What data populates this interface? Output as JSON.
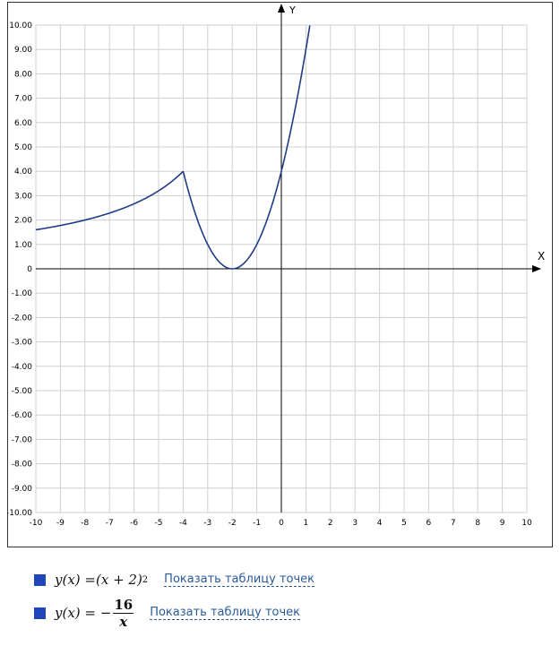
{
  "chart_data": {
    "type": "line",
    "xlabel": "X",
    "ylabel": "Y",
    "xlim": [
      -10,
      10
    ],
    "ylim": [
      -10,
      10
    ],
    "grid": true,
    "x_ticks": [
      "-10",
      "-9",
      "-8",
      "-7",
      "-6",
      "-5",
      "-4",
      "-3",
      "-2",
      "-1",
      "0",
      "1",
      "2",
      "3",
      "4",
      "5",
      "6",
      "7",
      "8",
      "9",
      "10"
    ],
    "y_ticks": [
      "10.00",
      "9.00",
      "8.00",
      "7.00",
      "6.00",
      "5.00",
      "4.00",
      "3.00",
      "2.00",
      "1.00",
      "0",
      "-1.00",
      "-2.00",
      "-3.00",
      "-4.00",
      "-5.00",
      "-6.00",
      "-7.00",
      "-8.00",
      "-9.00",
      "-10.00"
    ],
    "series": [
      {
        "formula": "(x+2)^2",
        "color": "#1f3c88",
        "domain": [
          -4,
          1.16
        ],
        "x": [
          -4,
          -3.5,
          -3,
          -2.5,
          -2,
          -1.5,
          -1,
          -0.5,
          0,
          0.5,
          1,
          1.16
        ],
        "y": [
          4,
          2.25,
          1,
          0.25,
          0,
          0.25,
          1,
          2.25,
          4,
          6.25,
          9,
          10
        ]
      },
      {
        "formula": "-16/x",
        "color": "#1f3c88",
        "domain": [
          -10,
          -4
        ],
        "x": [
          -10,
          -9,
          -8,
          -7,
          -6,
          -5,
          -4.5,
          -4
        ],
        "y": [
          1.6,
          1.78,
          2,
          2.29,
          2.67,
          3.2,
          3.56,
          4
        ]
      }
    ]
  },
  "legend": [
    {
      "lhs": "y(x) = ",
      "expr": "(x + 2)",
      "power": "2",
      "link": "Показать таблицу точек"
    },
    {
      "lhs": "y(x) = −",
      "num": "16",
      "den": "x",
      "link": "Показать таблицу точек"
    }
  ]
}
